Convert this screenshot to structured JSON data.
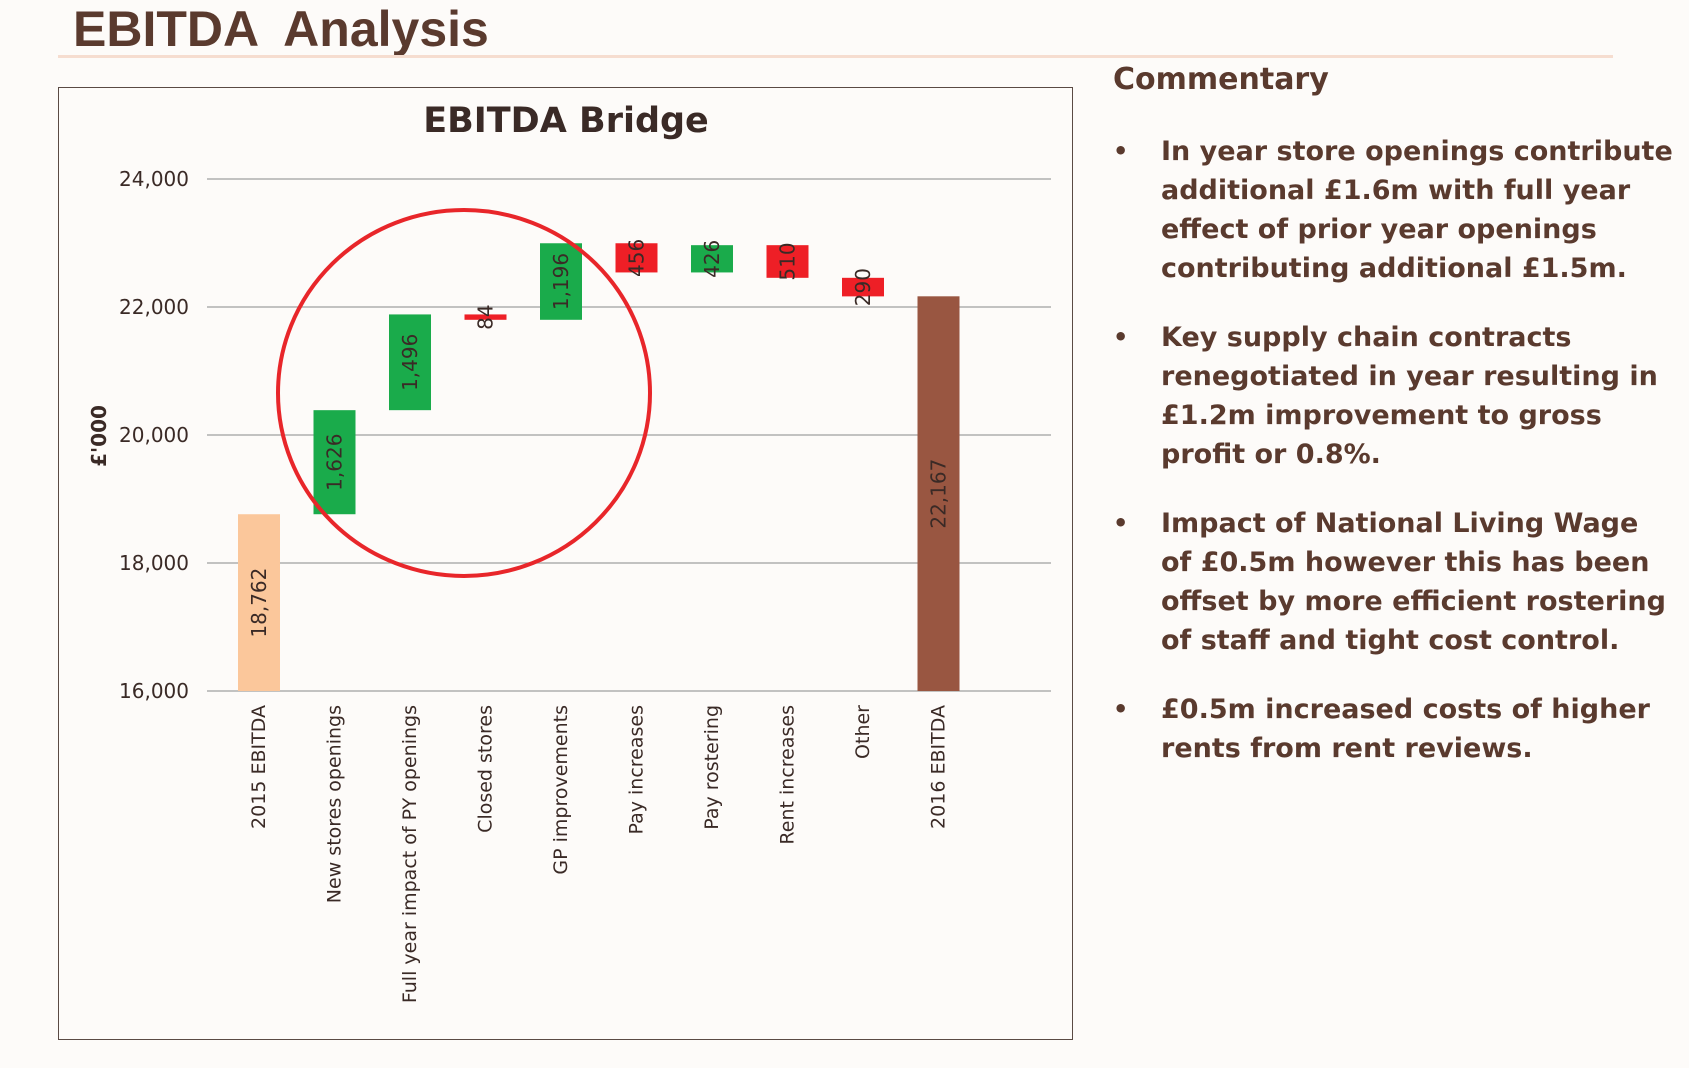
{
  "page": {
    "title": "EBITDA  Analysis"
  },
  "commentary": {
    "heading": "Commentary",
    "bullets": [
      "In year store openings contribute additional £1.6m with full year effect of prior year openings contributing additional £1.5m.",
      "Key supply chain contracts renegotiated in year  resulting in £1.2m improvement to gross profit or 0.8%.",
      "Impact of National Living Wage of £0.5m however this has been offset by more efficient rostering of staff and tight cost control.",
      "£0.5m increased costs of higher rents from rent reviews."
    ]
  },
  "colors": {
    "total_start": "#fbc79b",
    "increase": "#1aab4b",
    "decrease": "#ee1f26",
    "total_end": "#995641",
    "highlight_circle": "#e8262a",
    "grid": "#a0a0a0",
    "text": "#3a2a26"
  },
  "chart_data": {
    "type": "bar",
    "subtype": "waterfall",
    "title": "EBITDA Bridge",
    "ylabel": "£'000",
    "ylim": [
      16000,
      24000
    ],
    "yticks": [
      16000,
      18000,
      20000,
      22000,
      24000
    ],
    "ytick_labels": [
      "16,000",
      "18,000",
      "20,000",
      "22,000",
      "24,000"
    ],
    "grid": true,
    "categories": [
      "2015 EBITDA",
      "New stores openings",
      "Full year impact of PY openings",
      "Closed stores",
      "GP improvements",
      "Pay increases",
      "Pay rostering",
      "Rent increases",
      "Other",
      "2016 EBITDA"
    ],
    "values": [
      18762,
      1626,
      1496,
      -84,
      1196,
      -456,
      426,
      -510,
      -290,
      22167
    ],
    "kinds": [
      "total",
      "increase",
      "increase",
      "decrease",
      "increase",
      "decrease",
      "increase",
      "decrease",
      "decrease",
      "total"
    ],
    "value_labels": [
      "18,762",
      "1,626",
      "1,496",
      "84",
      "1,196",
      "456",
      "426",
      "510",
      "290",
      "22,167"
    ],
    "annotation": "highlight circle around New stores openings to GP improvements"
  }
}
